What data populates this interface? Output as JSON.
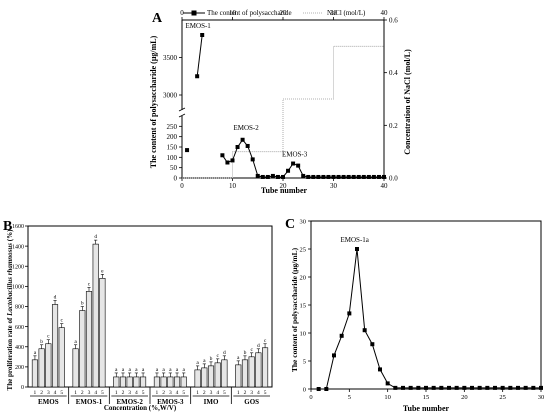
{
  "chart_data": [
    {
      "panel": "A",
      "type": "line",
      "xlabel": "Tube number",
      "ylabel": "The content of polysaccharide (μg/mL)",
      "y2label": "Concentration of NaCl (mol/L)",
      "xlim": [
        0,
        40
      ],
      "xticks": [
        "0",
        "10",
        "20",
        "30",
        "40"
      ],
      "ylim": [
        0,
        4000
      ],
      "yaxis_break": [
        300,
        2800
      ],
      "yticks": [
        "0",
        "50",
        "100",
        "150",
        "200",
        "250",
        "3000",
        "3500"
      ],
      "y2lim": [
        0,
        0.6
      ],
      "y2ticks": [
        "0.0",
        "0.2",
        "0.4",
        "0.6"
      ],
      "legend": [
        "The content of polysaccharide",
        "NaCl (mol/L)"
      ],
      "annotations": [
        "EMOS-1",
        "EMOS-2",
        "EMOS-3"
      ],
      "series": [
        {
          "name": "The content of polysaccharide",
          "x": [
            1,
            3,
            4,
            8,
            9,
            10,
            11,
            12,
            13,
            14,
            15,
            16,
            17,
            18,
            19,
            20,
            21,
            22,
            23,
            24,
            25,
            26,
            27,
            28,
            29,
            30,
            31,
            32,
            33,
            34,
            35,
            36,
            37,
            38,
            39,
            40
          ],
          "y": [
            135,
            3250,
            3800,
            110,
            75,
            85,
            150,
            185,
            155,
            90,
            10,
            5,
            5,
            10,
            5,
            5,
            35,
            70,
            60,
            10,
            5,
            5,
            5,
            5,
            5,
            5,
            5,
            5,
            5,
            5,
            5,
            5,
            5,
            5,
            5,
            5
          ]
        },
        {
          "name": "NaCl (mol/L)",
          "x": [
            0,
            10,
            10,
            20,
            20,
            30,
            30,
            40
          ],
          "y2": [
            0,
            0,
            0.1,
            0.1,
            0.3,
            0.3,
            0.5,
            0.5
          ]
        }
      ]
    },
    {
      "panel": "B",
      "type": "bar",
      "xlabel": "Concentration (%,W/V)",
      "ylabel": "The proliferation rate of Lactobacillus rhamnosus (%)",
      "ylim": [
        0,
        1600
      ],
      "yticks": [
        "0",
        "200",
        "400",
        "600",
        "800",
        "1000",
        "1200",
        "1400",
        "1600"
      ],
      "subcategories": [
        "1",
        "2",
        "3",
        "4",
        "5"
      ],
      "groups": [
        {
          "name": "EMOS",
          "values": [
            270,
            380,
            430,
            820,
            590
          ],
          "letters": [
            "a",
            "b",
            "c",
            "d",
            "c"
          ]
        },
        {
          "name": "EMOS-1",
          "values": [
            380,
            760,
            950,
            1420,
            1080
          ],
          "letters": [
            "a",
            "b",
            "c",
            "d",
            "e"
          ]
        },
        {
          "name": "EMOS-2",
          "values": [
            100,
            100,
            100,
            100,
            100
          ],
          "letters": [
            "a",
            "a",
            "a",
            "a",
            "a"
          ]
        },
        {
          "name": "EMOS-3",
          "values": [
            100,
            100,
            100,
            100,
            100
          ],
          "letters": [
            "a",
            "a",
            "a",
            "a",
            "a"
          ]
        },
        {
          "name": "IMO",
          "values": [
            170,
            190,
            210,
            240,
            270
          ],
          "letters": [
            "a",
            "a",
            "b",
            "c",
            "d"
          ]
        },
        {
          "name": "GOS",
          "values": [
            220,
            270,
            300,
            340,
            390
          ],
          "letters": [
            "a",
            "b",
            "c",
            "d",
            "c"
          ]
        }
      ]
    },
    {
      "panel": "C",
      "type": "line",
      "xlabel": "Tube number",
      "ylabel": "The content of polysaccharide (μg/mL)",
      "xlim": [
        0,
        30
      ],
      "xticks": [
        "0",
        "5",
        "10",
        "15",
        "20",
        "25",
        "30"
      ],
      "ylim": [
        0,
        30
      ],
      "yticks": [
        "0",
        "5",
        "10",
        "15",
        "20",
        "25",
        "30"
      ],
      "annotations": [
        "EMOS-1a"
      ],
      "series": [
        {
          "name": "",
          "x": [
            1,
            2,
            3,
            4,
            5,
            6,
            7,
            8,
            9,
            10,
            11,
            12,
            13,
            14,
            15,
            16,
            17,
            18,
            19,
            20,
            21,
            22,
            23,
            24,
            25,
            26,
            27,
            28,
            29,
            30
          ],
          "y": [
            0,
            0,
            6,
            9.5,
            13.5,
            25,
            10.5,
            8,
            3.5,
            1,
            0.2,
            0.2,
            0.2,
            0.2,
            0.2,
            0.2,
            0.2,
            0.2,
            0.2,
            0.2,
            0.2,
            0.2,
            0.2,
            0.2,
            0.2,
            0.2,
            0.2,
            0.2,
            0.2,
            0.2
          ]
        }
      ]
    }
  ]
}
